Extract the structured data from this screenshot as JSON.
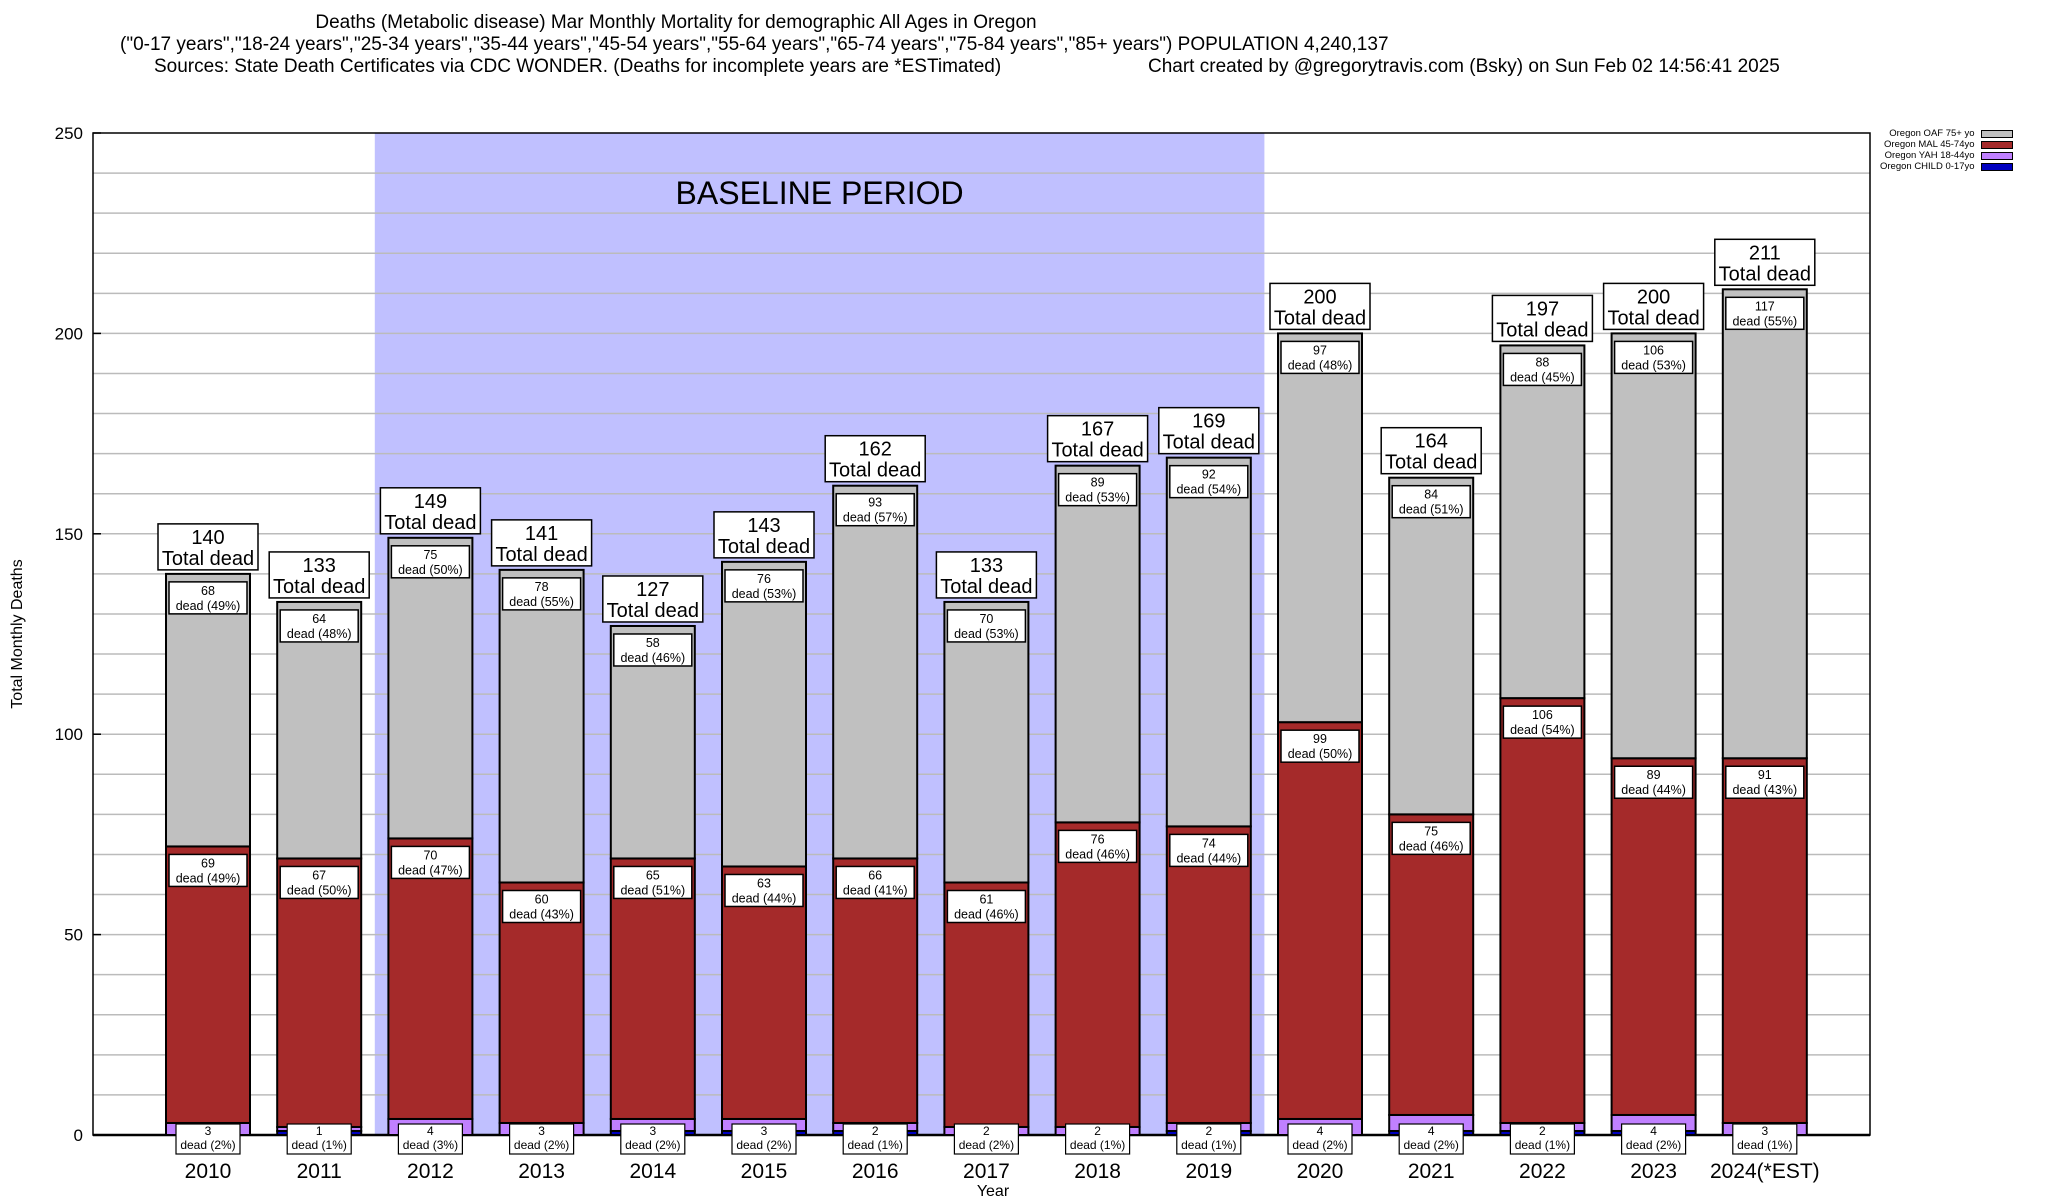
{
  "chart_data": {
    "type": "bar",
    "stacked": true,
    "title": "Deaths (Metabolic disease) Mar Monthly Mortality for demographic All Ages in Oregon",
    "subtitle": "(\"0-17 years\",\"18-24 years\",\"25-34 years\",\"35-44 years\",\"45-54 years\",\"55-64 years\",\"65-74 years\",\"75-84 years\",\"85+ years\") POPULATION 4,240,137",
    "sources": "Sources: State Death Certificates via CDC WONDER. (Deaths for incomplete years are *ESTimated)",
    "credit": "Chart created by @gregorytravis.com (Bsky) on Sun Feb 02 14:56:41 2025",
    "xlabel": "Year",
    "ylabel": "Total Monthly Deaths",
    "ylim": [
      0,
      250
    ],
    "yticks": [
      0,
      50,
      100,
      150,
      200,
      250
    ],
    "grid": true,
    "legend_position": "top-right",
    "baseline_annotation": {
      "label": "BASELINE PERIOD",
      "start": "2012",
      "end": "2019",
      "color": "#c0c0ff"
    },
    "categories": [
      "2010",
      "2011",
      "2012",
      "2013",
      "2014",
      "2015",
      "2016",
      "2017",
      "2018",
      "2019",
      "2020",
      "2021",
      "2022",
      "2023",
      "2024(*EST)"
    ],
    "totals": [
      140,
      133,
      149,
      141,
      127,
      143,
      162,
      133,
      167,
      169,
      200,
      164,
      197,
      200,
      211
    ],
    "total_label_suffix": "Total dead",
    "segment_label_word": "dead",
    "series": [
      {
        "name": "Oregon CHILD 0-17yo",
        "color": "#0000c0",
        "values": [
          0,
          1,
          0,
          0,
          1,
          1,
          1,
          0,
          0,
          1,
          0,
          1,
          1,
          1,
          0
        ]
      },
      {
        "name": "Oregon YAH 18-44yo",
        "color": "#c080ff",
        "values": [
          3,
          1,
          4,
          3,
          3,
          3,
          2,
          2,
          2,
          2,
          4,
          4,
          2,
          4,
          3
        ],
        "labels_pct": [
          "2%",
          "1%",
          "3%",
          "2%",
          "2%",
          "2%",
          "1%",
          "2%",
          "1%",
          "1%",
          "2%",
          "2%",
          "1%",
          "2%",
          "1%"
        ]
      },
      {
        "name": "Oregon MAL 45-74yo",
        "color": "#a52a2a",
        "values": [
          69,
          67,
          70,
          60,
          65,
          63,
          66,
          61,
          76,
          74,
          99,
          75,
          106,
          89,
          91
        ],
        "labels_pct": [
          "49%",
          "50%",
          "47%",
          "43%",
          "51%",
          "44%",
          "41%",
          "46%",
          "46%",
          "44%",
          "50%",
          "46%",
          "54%",
          "44%",
          "43%"
        ]
      },
      {
        "name": "Oregon OAF 75+ yo",
        "color": "#c0c0c0",
        "values": [
          68,
          64,
          75,
          78,
          58,
          76,
          93,
          70,
          89,
          92,
          97,
          84,
          88,
          106,
          117
        ],
        "labels_pct": [
          "49%",
          "48%",
          "50%",
          "55%",
          "46%",
          "53%",
          "57%",
          "53%",
          "53%",
          "54%",
          "48%",
          "51%",
          "45%",
          "53%",
          "55%"
        ]
      }
    ],
    "legend_order": [
      "Oregon OAF 75+ yo",
      "Oregon MAL 45-74yo",
      "Oregon YAH 18-44yo",
      "Oregon CHILD 0-17yo"
    ]
  }
}
